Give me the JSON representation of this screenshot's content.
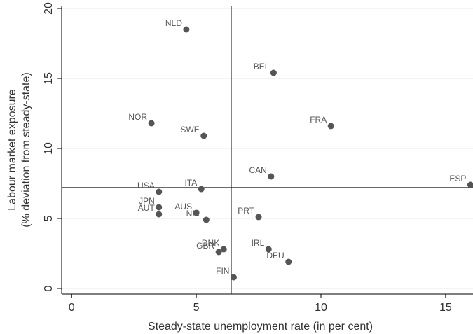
{
  "chart_data": {
    "type": "scatter",
    "title": "",
    "xlabel": "Steady-state unemployment rate (in per cent)",
    "ylabel": [
      "Labour market exposure",
      "(% deviation from steady-state)"
    ],
    "xlim": [
      -0.4,
      16.1
    ],
    "ylim": [
      -0.4,
      20.2
    ],
    "xticks": [
      0,
      5,
      10,
      15
    ],
    "yticks": [
      0,
      5,
      10,
      15,
      20
    ],
    "grid": true,
    "reference_lines": {
      "x": 6.4,
      "y": 7.2
    },
    "colors": {
      "marker": "#555555",
      "label": "#555555",
      "grid": "#eaeaea",
      "axis": "#000000",
      "reference": "#111111"
    },
    "points": [
      {
        "label": "NLD",
        "x": 4.6,
        "y": 18.5
      },
      {
        "label": "BEL",
        "x": 8.1,
        "y": 15.4
      },
      {
        "label": "NOR",
        "x": 3.2,
        "y": 11.8
      },
      {
        "label": "SWE",
        "x": 5.3,
        "y": 10.9
      },
      {
        "label": "FRA",
        "x": 10.4,
        "y": 11.6
      },
      {
        "label": "CAN",
        "x": 8.0,
        "y": 8.0
      },
      {
        "label": "ESP",
        "x": 16.0,
        "y": 7.4
      },
      {
        "label": "USA",
        "x": 3.5,
        "y": 6.9
      },
      {
        "label": "ITA",
        "x": 5.2,
        "y": 7.1
      },
      {
        "label": "JPN",
        "x": 3.5,
        "y": 5.8
      },
      {
        "label": "AUT",
        "x": 3.5,
        "y": 5.3
      },
      {
        "label": "AUS",
        "x": 5.0,
        "y": 5.4
      },
      {
        "label": "NZL",
        "x": 5.4,
        "y": 4.9
      },
      {
        "label": "PRT",
        "x": 7.5,
        "y": 5.1
      },
      {
        "label": "DNK",
        "x": 6.1,
        "y": 2.8
      },
      {
        "label": "GBR",
        "x": 5.9,
        "y": 2.6
      },
      {
        "label": "IRL",
        "x": 7.9,
        "y": 2.8
      },
      {
        "label": "DEU",
        "x": 8.7,
        "y": 1.9
      },
      {
        "label": "FIN",
        "x": 6.5,
        "y": 0.8
      }
    ]
  }
}
